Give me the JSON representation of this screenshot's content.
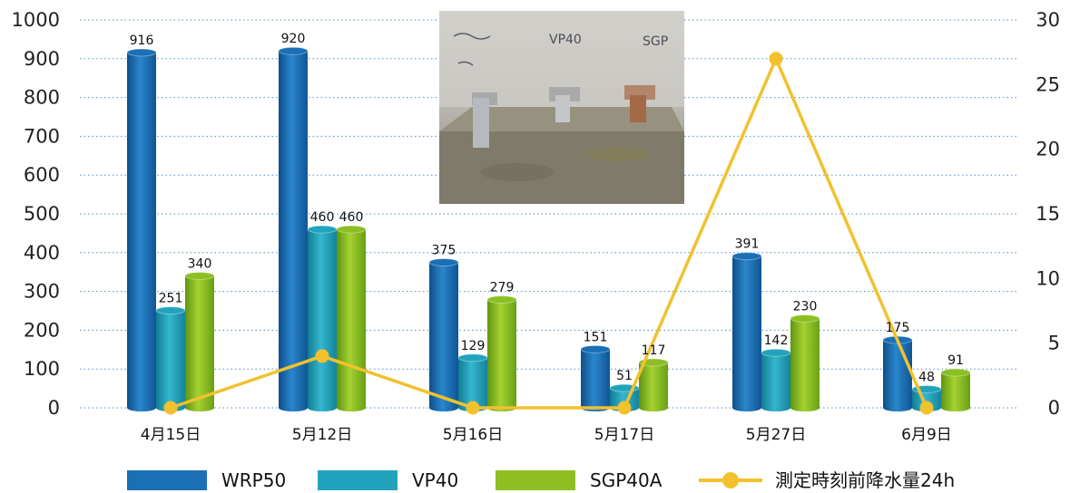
{
  "chart_data": {
    "type": "bar",
    "categories": [
      "4月15日",
      "5月12日",
      "5月16日",
      "5月17日",
      "5月27日",
      "6月9日"
    ],
    "series": [
      {
        "name": "WRP50",
        "type": "bar",
        "axis": "left",
        "color": "#1a6fb5",
        "values": [
          916,
          920,
          375,
          151,
          391,
          175
        ],
        "labels": [
          "916",
          "920",
          "375",
          "151",
          "391",
          "175"
        ]
      },
      {
        "name": "VP40",
        "type": "bar",
        "axis": "left",
        "color": "#22a3bd",
        "values": [
          251,
          460,
          129,
          51,
          142,
          48
        ],
        "labels": [
          "251",
          "460",
          "129",
          "51",
          "142",
          "48"
        ]
      },
      {
        "name": "SGP40A",
        "type": "bar",
        "axis": "left",
        "color": "#8dbf22",
        "values": [
          340,
          460,
          279,
          117,
          230,
          91
        ],
        "labels": [
          "340",
          "460",
          "279",
          "117",
          "230",
          "91"
        ]
      },
      {
        "name": "測定時刻前降水量24h",
        "type": "line",
        "axis": "right",
        "color": "#f2c12e",
        "values": [
          0,
          4,
          0,
          0,
          27,
          0
        ]
      }
    ],
    "y_left": {
      "min": 0,
      "max": 1000,
      "ticks": [
        "0",
        "100",
        "200",
        "300",
        "400",
        "500",
        "600",
        "700",
        "800",
        "900",
        "1000"
      ]
    },
    "y_right": {
      "min": 0,
      "max": 30,
      "ticks": [
        "0",
        "5",
        "10",
        "15",
        "20",
        "25",
        "30"
      ]
    },
    "grid": true,
    "legend_position": "bottom",
    "inset_photo": {
      "marker_labels": [
        "VP40",
        "SGP"
      ]
    }
  }
}
